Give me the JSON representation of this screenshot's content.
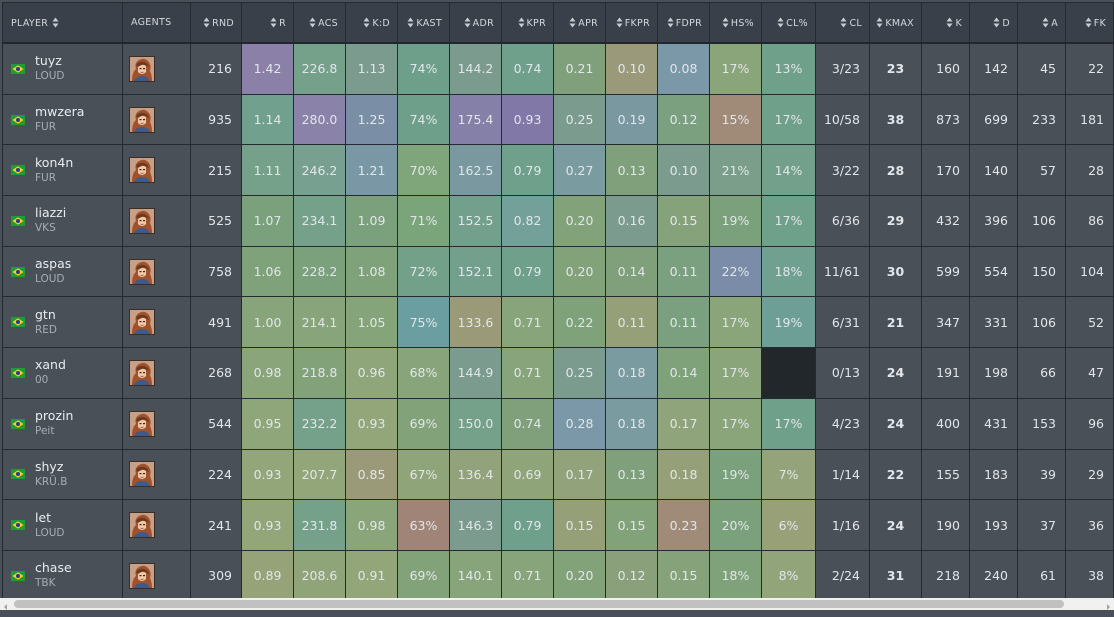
{
  "table": {
    "headers": [
      {
        "key": "player",
        "label": "PLAYER",
        "sortable": true
      },
      {
        "key": "agents",
        "label": "AGENTS",
        "sortable": false
      },
      {
        "key": "rnd",
        "label": "RND",
        "sortable": true
      },
      {
        "key": "r",
        "label": "R",
        "sortable": true
      },
      {
        "key": "acs",
        "label": "ACS",
        "sortable": true
      },
      {
        "key": "kd",
        "label": "K:D",
        "sortable": true
      },
      {
        "key": "kast",
        "label": "KAST",
        "sortable": true
      },
      {
        "key": "adr",
        "label": "ADR",
        "sortable": true
      },
      {
        "key": "kpr",
        "label": "KPR",
        "sortable": true
      },
      {
        "key": "apr",
        "label": "APR",
        "sortable": true
      },
      {
        "key": "fkpr",
        "label": "FKPR",
        "sortable": true
      },
      {
        "key": "fdpr",
        "label": "FDPR",
        "sortable": true
      },
      {
        "key": "hs",
        "label": "HS%",
        "sortable": true
      },
      {
        "key": "clpct",
        "label": "CL%",
        "sortable": true
      },
      {
        "key": "cl",
        "label": "CL",
        "sortable": true
      },
      {
        "key": "kmax",
        "label": "KMAX",
        "sortable": true
      },
      {
        "key": "k",
        "label": "K",
        "sortable": true
      },
      {
        "key": "d",
        "label": "D",
        "sortable": true
      },
      {
        "key": "a",
        "label": "A",
        "sortable": true
      },
      {
        "key": "fk",
        "label": "FK",
        "sortable": true
      }
    ],
    "rows": [
      {
        "name": "tuyz",
        "team": "LOUD",
        "flag": "brazil-flag",
        "agent": "agent-portrait",
        "rnd": "216",
        "r": "1.42",
        "acs": "226.8",
        "kd": "1.13",
        "kast": "74%",
        "adr": "144.2",
        "kpr": "0.74",
        "apr": "0.21",
        "fkpr": "0.10",
        "fdpr": "0.08",
        "hs": "17%",
        "clpct": "13%",
        "cl": "3/23",
        "kmax": "23",
        "k": "160",
        "d": "142",
        "a": "45",
        "fk": "22",
        "colors": {
          "r": "#8a80a8",
          "acs": "#75a08a",
          "kd": "#7a9b8e",
          "kast": "#6e9f8a",
          "adr": "#7a9b8e",
          "kpr": "#6fa08c",
          "apr": "#7fa07a",
          "fkpr": "#9a9a7a",
          "fdpr": "#7a98a8",
          "hs": "#8aa57a",
          "clpct": "#6fa08a"
        }
      },
      {
        "name": "mwzera",
        "team": "FUR",
        "flag": "brazil-flag",
        "agent": "agent-portrait",
        "rnd": "935",
        "r": "1.14",
        "acs": "280.0",
        "kd": "1.25",
        "kast": "74%",
        "adr": "175.4",
        "kpr": "0.93",
        "apr": "0.25",
        "fkpr": "0.19",
        "fdpr": "0.12",
        "hs": "15%",
        "clpct": "17%",
        "cl": "10/58",
        "kmax": "38",
        "k": "873",
        "d": "699",
        "a": "233",
        "fk": "181",
        "colors": {
          "r": "#72a08e",
          "acs": "#8a82a8",
          "kd": "#7a8fa5",
          "kast": "#6e9f8a",
          "adr": "#8580a8",
          "kpr": "#8278a8",
          "apr": "#7a9b8e",
          "fkpr": "#7a98a0",
          "fdpr": "#7aa080",
          "hs": "#a08a78",
          "clpct": "#6fa08a"
        }
      },
      {
        "name": "kon4n",
        "team": "FUR",
        "flag": "brazil-flag",
        "agent": "agent-portrait",
        "rnd": "215",
        "r": "1.11",
        "acs": "246.2",
        "kd": "1.21",
        "kast": "70%",
        "adr": "162.5",
        "kpr": "0.79",
        "apr": "0.27",
        "fkpr": "0.13",
        "fdpr": "0.10",
        "hs": "21%",
        "clpct": "14%",
        "cl": "3/22",
        "kmax": "28",
        "k": "170",
        "d": "140",
        "a": "57",
        "fk": "28",
        "colors": {
          "r": "#75a08a",
          "acs": "#78a090",
          "kd": "#7a97a5",
          "kast": "#7fa57a",
          "adr": "#7a98a0",
          "kpr": "#6fa08c",
          "apr": "#7a9ba0",
          "fkpr": "#7fa07a",
          "fdpr": "#7a9b8e",
          "hs": "#7a9e8a",
          "clpct": "#72a08a"
        }
      },
      {
        "name": "liazzi",
        "team": "VKS",
        "flag": "brazil-flag",
        "agent": "agent-portrait",
        "rnd": "525",
        "r": "1.07",
        "acs": "234.1",
        "kd": "1.09",
        "kast": "71%",
        "adr": "152.5",
        "kpr": "0.82",
        "apr": "0.20",
        "fkpr": "0.16",
        "fdpr": "0.15",
        "hs": "19%",
        "clpct": "17%",
        "cl": "6/36",
        "kmax": "29",
        "k": "432",
        "d": "396",
        "a": "106",
        "fk": "86",
        "colors": {
          "r": "#7aa07c",
          "acs": "#75a08a",
          "kd": "#7aa07c",
          "kast": "#7aa57a",
          "adr": "#73a08c",
          "kpr": "#74a09a",
          "apr": "#82a27a",
          "fkpr": "#7a9b8e",
          "fdpr": "#86a27a",
          "hs": "#7aa07c",
          "clpct": "#6fa08a"
        }
      },
      {
        "name": "aspas",
        "team": "LOUD",
        "flag": "brazil-flag",
        "agent": "agent-portrait",
        "rnd": "758",
        "r": "1.06",
        "acs": "228.2",
        "kd": "1.08",
        "kast": "72%",
        "adr": "152.1",
        "kpr": "0.79",
        "apr": "0.20",
        "fkpr": "0.14",
        "fdpr": "0.11",
        "hs": "22%",
        "clpct": "18%",
        "cl": "11/61",
        "kmax": "30",
        "k": "599",
        "d": "554",
        "a": "150",
        "fk": "104",
        "colors": {
          "r": "#7fa27a",
          "acs": "#7aa07c",
          "kd": "#7fa27a",
          "kast": "#72a088",
          "adr": "#73a08c",
          "kpr": "#6fa08c",
          "apr": "#82a27a",
          "fkpr": "#7fa07a",
          "fdpr": "#7aa080",
          "hs": "#7a8ca8",
          "clpct": "#6fa090"
        }
      },
      {
        "name": "gtn",
        "team": "RED",
        "flag": "brazil-flag",
        "agent": "agent-portrait",
        "rnd": "491",
        "r": "1.00",
        "acs": "214.1",
        "kd": "1.05",
        "kast": "75%",
        "adr": "133.6",
        "kpr": "0.71",
        "apr": "0.22",
        "fkpr": "0.11",
        "fdpr": "0.11",
        "hs": "17%",
        "clpct": "19%",
        "cl": "6/31",
        "kmax": "21",
        "k": "347",
        "d": "331",
        "a": "106",
        "fk": "52",
        "colors": {
          "r": "#88a47a",
          "acs": "#88a47a",
          "kd": "#85a47a",
          "kast": "#6a9ea0",
          "adr": "#9a9a78",
          "kpr": "#88a47a",
          "apr": "#7fa27a",
          "fkpr": "#96a078",
          "fdpr": "#7aa080",
          "hs": "#8aa57a",
          "clpct": "#6e9f96"
        }
      },
      {
        "name": "xand",
        "team": "00",
        "flag": "brazil-flag",
        "agent": "agent-portrait",
        "rnd": "268",
        "r": "0.98",
        "acs": "218.8",
        "kd": "0.96",
        "kast": "68%",
        "adr": "144.9",
        "kpr": "0.71",
        "apr": "0.25",
        "fkpr": "0.18",
        "fdpr": "0.14",
        "hs": "17%",
        "clpct": "",
        "cl": "0/13",
        "kmax": "24",
        "k": "191",
        "d": "198",
        "a": "66",
        "fk": "47",
        "colors": {
          "r": "#8aa57a",
          "acs": "#82a27a",
          "kd": "#8fa67a",
          "kast": "#88a47a",
          "adr": "#7a9b8e",
          "kpr": "#88a47a",
          "apr": "#7a9b8e",
          "fkpr": "#7a9ba0",
          "fdpr": "#7fa27a",
          "hs": "#8aa57a",
          "clpct": "#22272c"
        }
      },
      {
        "name": "prozin",
        "team": "Peit",
        "flag": "brazil-flag",
        "agent": "agent-portrait",
        "rnd": "544",
        "r": "0.95",
        "acs": "232.2",
        "kd": "0.93",
        "kast": "69%",
        "adr": "150.0",
        "kpr": "0.74",
        "apr": "0.28",
        "fkpr": "0.18",
        "fdpr": "0.17",
        "hs": "17%",
        "clpct": "17%",
        "cl": "4/23",
        "kmax": "24",
        "k": "400",
        "d": "431",
        "a": "153",
        "fk": "96",
        "colors": {
          "r": "#8fa67a",
          "acs": "#75a08a",
          "kd": "#92a67a",
          "kast": "#82a27a",
          "adr": "#75a08a",
          "kpr": "#7fa07a",
          "apr": "#7a98a8",
          "fkpr": "#7a9ba0",
          "fdpr": "#8fa47a",
          "hs": "#8aa57a",
          "clpct": "#6fa08a"
        }
      },
      {
        "name": "shyz",
        "team": "KRÜ.B",
        "flag": "brazil-flag",
        "agent": "agent-portrait",
        "rnd": "224",
        "r": "0.93",
        "acs": "207.7",
        "kd": "0.85",
        "kast": "67%",
        "adr": "136.4",
        "kpr": "0.69",
        "apr": "0.17",
        "fkpr": "0.13",
        "fdpr": "0.18",
        "hs": "19%",
        "clpct": "7%",
        "cl": "1/14",
        "kmax": "22",
        "k": "155",
        "d": "183",
        "a": "39",
        "fk": "29",
        "colors": {
          "r": "#92a67a",
          "acs": "#92a67a",
          "kd": "#9a9a78",
          "kast": "#90a47a",
          "adr": "#92a27a",
          "kpr": "#90a47a",
          "apr": "#92a27a",
          "fkpr": "#7fa07a",
          "fdpr": "#96a078",
          "hs": "#7aa07c",
          "clpct": "#95a37a"
        }
      },
      {
        "name": "let",
        "team": "LOUD",
        "flag": "brazil-flag",
        "agent": "agent-portrait",
        "rnd": "241",
        "r": "0.93",
        "acs": "231.8",
        "kd": "0.98",
        "kast": "63%",
        "adr": "146.3",
        "kpr": "0.79",
        "apr": "0.15",
        "fkpr": "0.15",
        "fdpr": "0.23",
        "hs": "20%",
        "clpct": "6%",
        "cl": "1/16",
        "kmax": "24",
        "k": "190",
        "d": "193",
        "a": "37",
        "fk": "36",
        "colors": {
          "r": "#92a67a",
          "acs": "#75a08a",
          "kd": "#8aa57a",
          "kast": "#a08478",
          "adr": "#7a9b8e",
          "kpr": "#6fa08c",
          "apr": "#96a078",
          "fkpr": "#82a27a",
          "fdpr": "#a08a78",
          "hs": "#7aa07c",
          "clpct": "#98a078"
        }
      },
      {
        "name": "chase",
        "team": "TBK",
        "flag": "brazil-flag",
        "agent": "agent-portrait",
        "rnd": "309",
        "r": "0.89",
        "acs": "208.6",
        "kd": "0.91",
        "kast": "69%",
        "adr": "140.1",
        "kpr": "0.71",
        "apr": "0.20",
        "fkpr": "0.12",
        "fdpr": "0.15",
        "hs": "18%",
        "clpct": "8%",
        "cl": "2/24",
        "kmax": "31",
        "k": "218",
        "d": "240",
        "a": "61",
        "fk": "38",
        "colors": {
          "r": "#96a278",
          "acs": "#90a47a",
          "kd": "#92a67a",
          "kast": "#82a27a",
          "adr": "#88a47a",
          "kpr": "#88a47a",
          "apr": "#82a27a",
          "fkpr": "#8aa07a",
          "fdpr": "#86a27a",
          "hs": "#7fa27a",
          "clpct": "#92a47a"
        }
      }
    ]
  },
  "colors": {
    "background": "#4a5058",
    "header_background": "#3a4049",
    "grid_line": "#252a31",
    "kmax_text": "#8ec9e8"
  }
}
